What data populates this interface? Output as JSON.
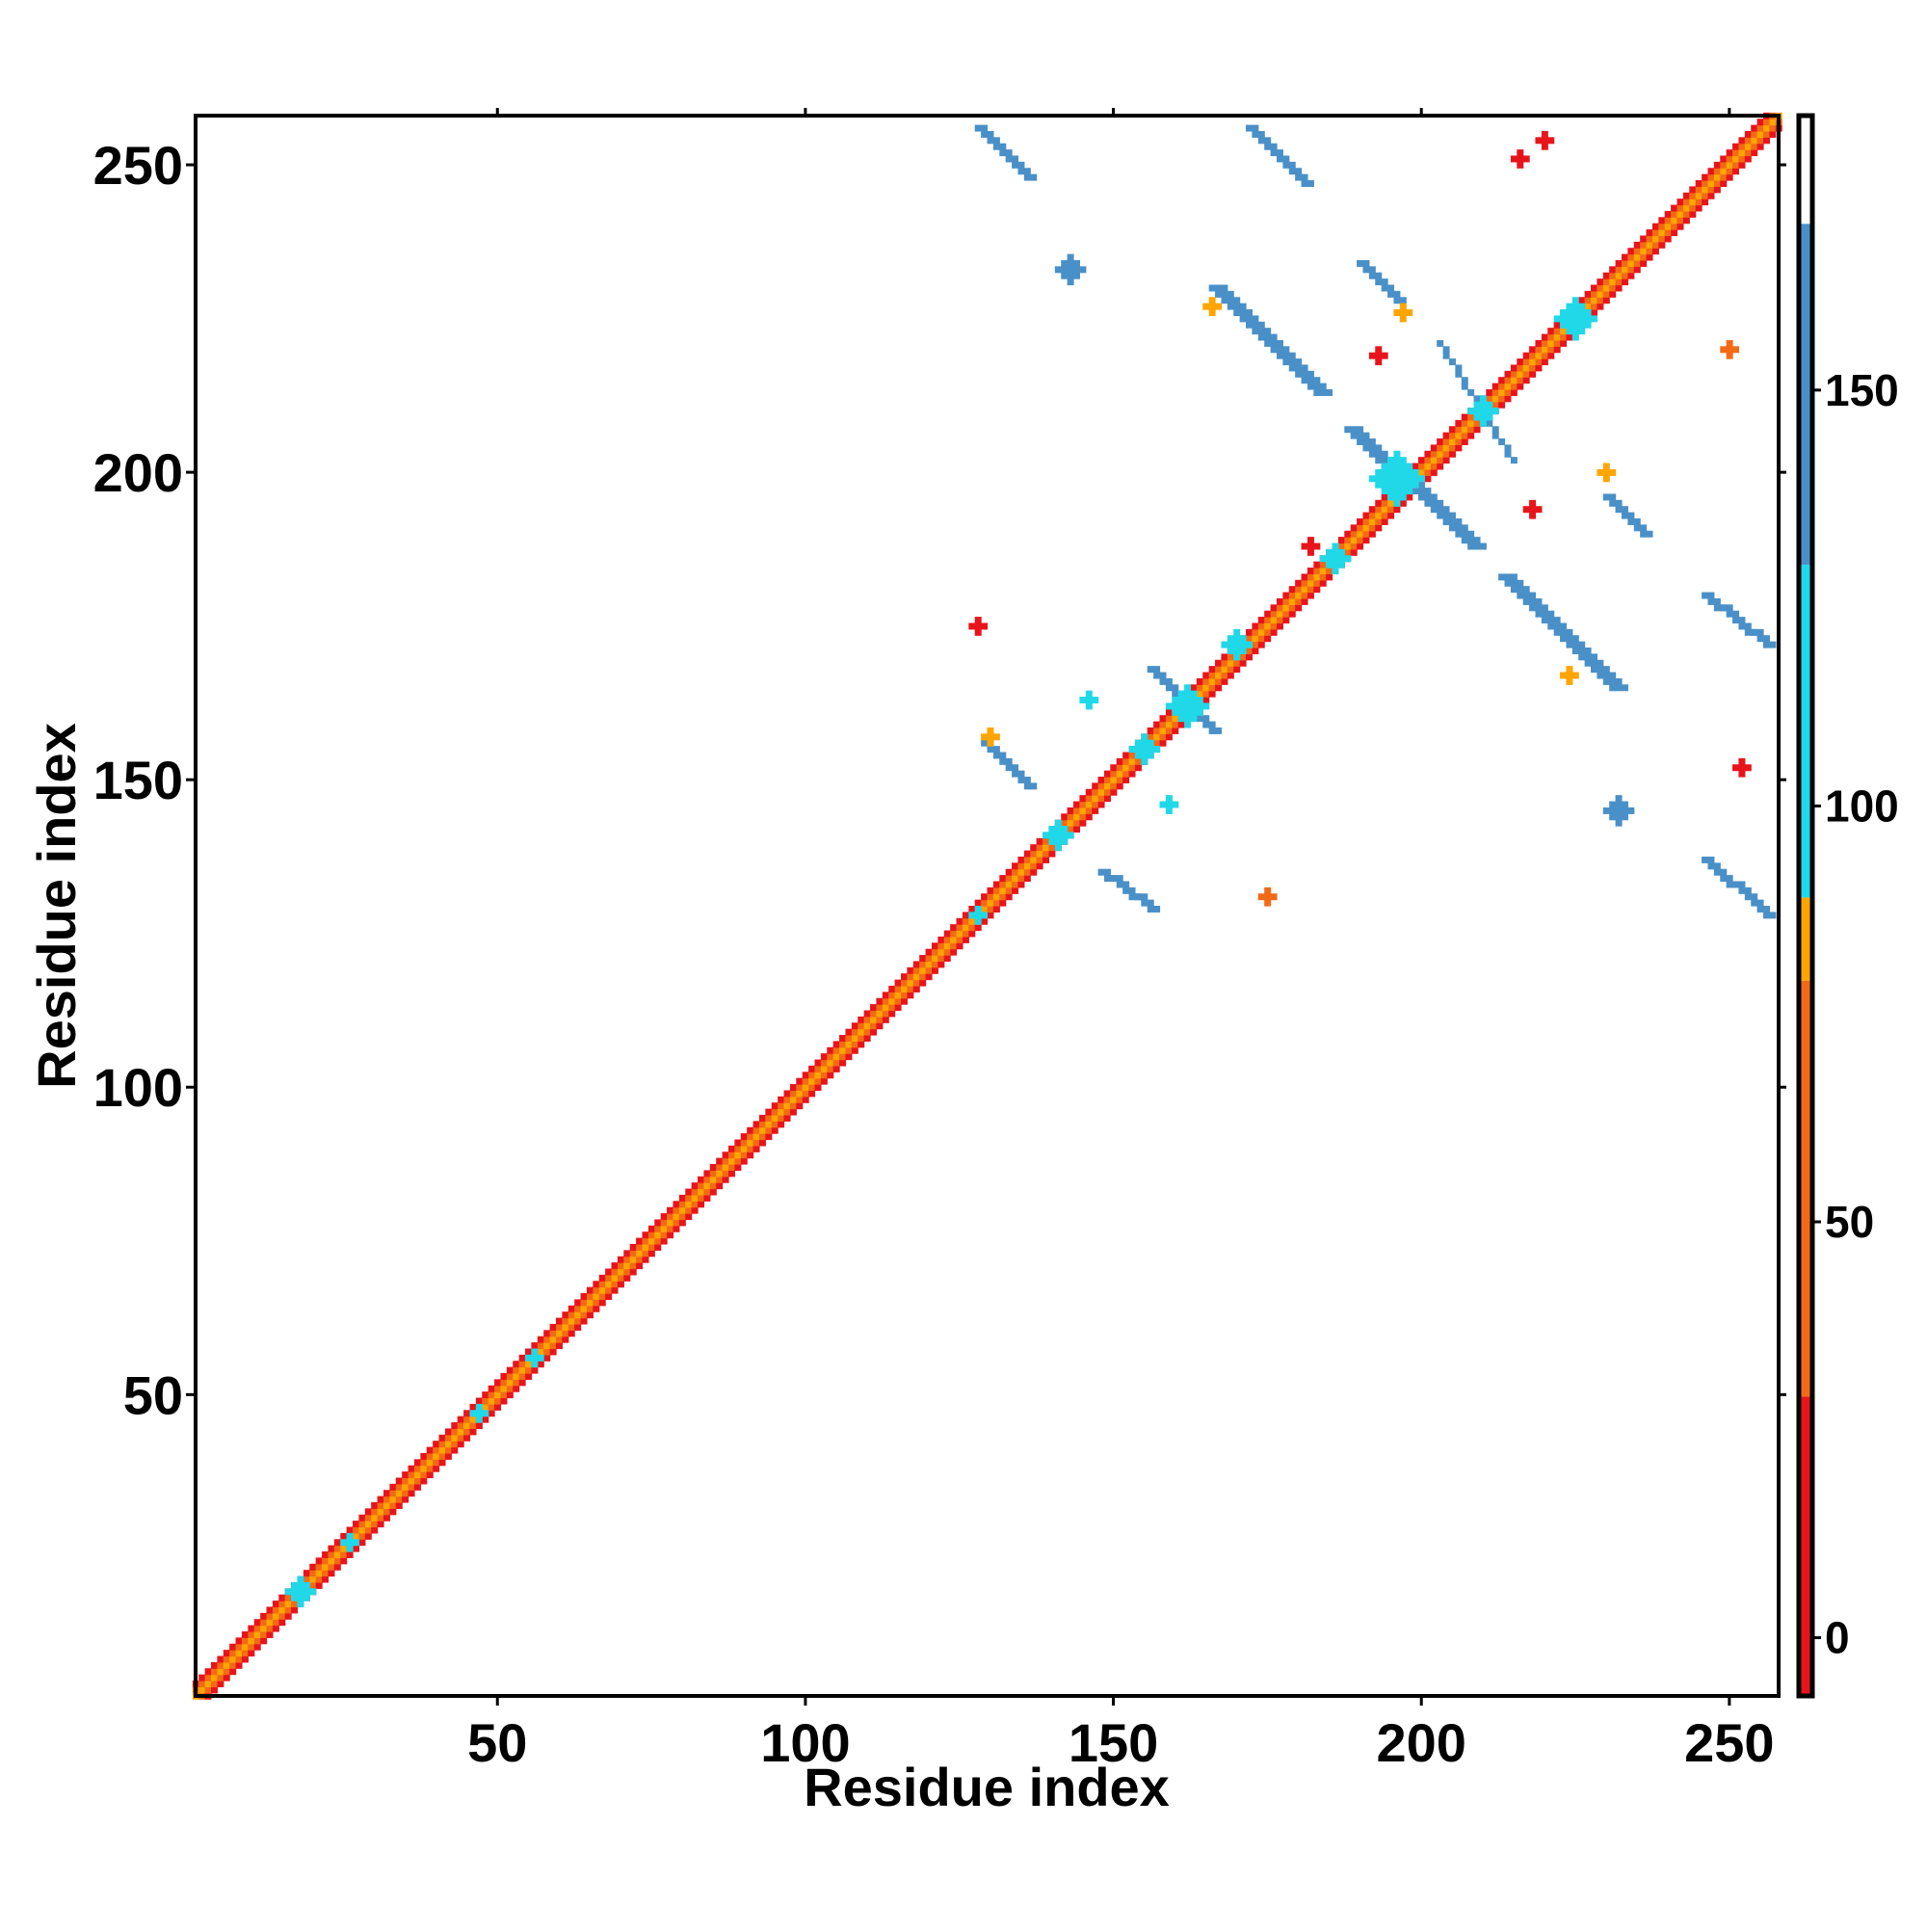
{
  "chart_data": {
    "type": "heatmap",
    "title": "",
    "xlabel": "Residue index",
    "ylabel": "Residue index",
    "xlim": [
      1,
      258
    ],
    "ylim": [
      1,
      258
    ],
    "x_ticks": [
      50,
      100,
      150,
      200,
      250
    ],
    "y_ticks": [
      50,
      100,
      150,
      200,
      250
    ],
    "x_tick_labels": [
      "50",
      "100",
      "150",
      "200",
      "250"
    ],
    "y_tick_labels": [
      "50",
      "100",
      "150",
      "200",
      "250"
    ],
    "grid": false,
    "legend": "none",
    "colorbar": {
      "range": [
        -7,
        183
      ],
      "ticks": [
        0,
        50,
        100,
        150
      ],
      "tick_labels": [
        "0",
        "50",
        "100",
        "150"
      ],
      "bands": [
        {
          "from": -7,
          "to": 29,
          "color": "#e8141c"
        },
        {
          "from": 29,
          "to": 79,
          "color": "#f36a16"
        },
        {
          "from": 79,
          "to": 89,
          "color": "#ffa500"
        },
        {
          "from": 89,
          "to": 129,
          "color": "#20d8e8"
        },
        {
          "from": 129,
          "to": 170,
          "color": "#4a90c8"
        },
        {
          "from": 170,
          "to": 183,
          "color": "#ffffff"
        }
      ]
    },
    "diagonal": {
      "from": 1,
      "to": 258,
      "half_width": 2
    },
    "regions": [
      {
        "color": "#4a90c8",
        "kind": "anti-diagonal",
        "start": [
          128,
          256
        ],
        "end": [
          136,
          248
        ],
        "width": 2
      },
      {
        "color": "#4a90c8",
        "kind": "anti-diagonal",
        "start": [
          172,
          256
        ],
        "end": [
          181,
          247
        ],
        "width": 2
      },
      {
        "color": "#4a90c8",
        "kind": "anti-diagonal",
        "start": [
          166,
          230
        ],
        "end": [
          183,
          213
        ],
        "width": 3
      },
      {
        "color": "#4a90c8",
        "kind": "anti-diagonal",
        "start": [
          190,
          234
        ],
        "end": [
          196,
          228
        ],
        "width": 2
      },
      {
        "color": "#4a90c8",
        "kind": "anti-diagonal",
        "start": [
          188,
          207
        ],
        "end": [
          208,
          188
        ],
        "width": 3
      },
      {
        "color": "#4a90c8",
        "kind": "anti-diagonal",
        "start": [
          230,
          196
        ],
        "end": [
          236,
          190
        ],
        "width": 2
      },
      {
        "color": "#4a90c8",
        "kind": "anti-diagonal",
        "start": [
          213,
          183
        ],
        "end": [
          231,
          165
        ],
        "width": 3
      },
      {
        "color": "#4a90c8",
        "kind": "anti-diagonal",
        "start": [
          246,
          180
        ],
        "end": [
          256,
          172
        ],
        "width": 2
      },
      {
        "color": "#4a90c8",
        "kind": "anti-diagonal",
        "start": [
          156,
          168
        ],
        "end": [
          166,
          158
        ],
        "width": 2
      },
      {
        "color": "#4a90c8",
        "kind": "anti-diagonal",
        "start": [
          129,
          156
        ],
        "end": [
          136,
          149
        ],
        "width": 2
      },
      {
        "color": "#4a90c8",
        "kind": "anti-diagonal",
        "start": [
          148,
          135
        ],
        "end": [
          156,
          129
        ],
        "width": 2
      },
      {
        "color": "#4a90c8",
        "kind": "anti-diagonal",
        "start": [
          246,
          137
        ],
        "end": [
          256,
          128
        ],
        "width": 2
      },
      {
        "color": "#4a90c8",
        "kind": "anti-diagonal",
        "start": [
          203,
          221
        ],
        "end": [
          215,
          202
        ],
        "width": 1
      },
      {
        "color": "#4a90c8",
        "kind": "blob",
        "center": [
          143,
          233
        ],
        "radius": 2
      },
      {
        "color": "#4a90c8",
        "kind": "blob",
        "center": [
          232,
          145
        ],
        "radius": 2
      },
      {
        "color": "#20d8e8",
        "kind": "blob",
        "center": [
          196,
          199
        ],
        "radius": 4
      },
      {
        "color": "#20d8e8",
        "kind": "blob",
        "center": [
          162,
          162
        ],
        "radius": 3
      },
      {
        "color": "#20d8e8",
        "kind": "blob",
        "center": [
          225,
          225
        ],
        "radius": 3
      },
      {
        "color": "#20d8e8",
        "kind": "blob",
        "center": [
          210,
          210
        ],
        "radius": 2
      },
      {
        "color": "#20d8e8",
        "kind": "blob",
        "center": [
          186,
          186
        ],
        "radius": 2
      },
      {
        "color": "#20d8e8",
        "kind": "blob",
        "center": [
          170,
          172
        ],
        "radius": 2
      },
      {
        "color": "#20d8e8",
        "kind": "blob",
        "center": [
          141,
          141
        ],
        "radius": 2
      },
      {
        "color": "#20d8e8",
        "kind": "blob",
        "center": [
          155,
          155
        ],
        "radius": 2
      },
      {
        "color": "#20d8e8",
        "kind": "blob",
        "center": [
          18,
          18
        ],
        "radius": 2
      },
      {
        "color": "#20d8e8",
        "kind": "blob",
        "center": [
          26,
          26
        ],
        "radius": 1
      },
      {
        "color": "#20d8e8",
        "kind": "blob",
        "center": [
          47,
          47
        ],
        "radius": 1
      },
      {
        "color": "#20d8e8",
        "kind": "blob",
        "center": [
          56,
          56
        ],
        "radius": 1
      },
      {
        "color": "#20d8e8",
        "kind": "blob",
        "center": [
          128,
          128
        ],
        "radius": 1
      },
      {
        "color": "#20d8e8",
        "kind": "blob",
        "center": [
          159,
          146
        ],
        "radius": 1
      },
      {
        "color": "#20d8e8",
        "kind": "blob",
        "center": [
          146,
          163
        ],
        "radius": 1
      },
      {
        "color": "#ffa500",
        "kind": "blob",
        "center": [
          197,
          226
        ],
        "radius": 1
      },
      {
        "color": "#ffa500",
        "kind": "blob",
        "center": [
          166,
          227
        ],
        "radius": 1
      },
      {
        "color": "#ffa500",
        "kind": "blob",
        "center": [
          230,
          200
        ],
        "radius": 1
      },
      {
        "color": "#ffa500",
        "kind": "blob",
        "center": [
          224,
          167
        ],
        "radius": 1
      },
      {
        "color": "#ffa500",
        "kind": "blob",
        "center": [
          130,
          157
        ],
        "radius": 1
      },
      {
        "color": "#f36a16",
        "kind": "blob",
        "center": [
          250,
          220
        ],
        "radius": 1
      },
      {
        "color": "#e8141c",
        "kind": "blob",
        "center": [
          216,
          251
        ],
        "radius": 1
      },
      {
        "color": "#e8141c",
        "kind": "blob",
        "center": [
          220,
          254
        ],
        "radius": 1
      },
      {
        "color": "#e8141c",
        "kind": "blob",
        "center": [
          128,
          175
        ],
        "radius": 1
      },
      {
        "color": "#f36a16",
        "kind": "blob",
        "center": [
          175,
          131
        ],
        "radius": 1
      },
      {
        "color": "#e8141c",
        "kind": "blob",
        "center": [
          193,
          219
        ],
        "radius": 1
      },
      {
        "color": "#e8141c",
        "kind": "blob",
        "center": [
          218,
          194
        ],
        "radius": 1
      },
      {
        "color": "#e8141c",
        "kind": "blob",
        "center": [
          182,
          188
        ],
        "radius": 1
      },
      {
        "color": "#e8141c",
        "kind": "blob",
        "center": [
          252,
          152
        ],
        "radius": 1
      }
    ]
  }
}
